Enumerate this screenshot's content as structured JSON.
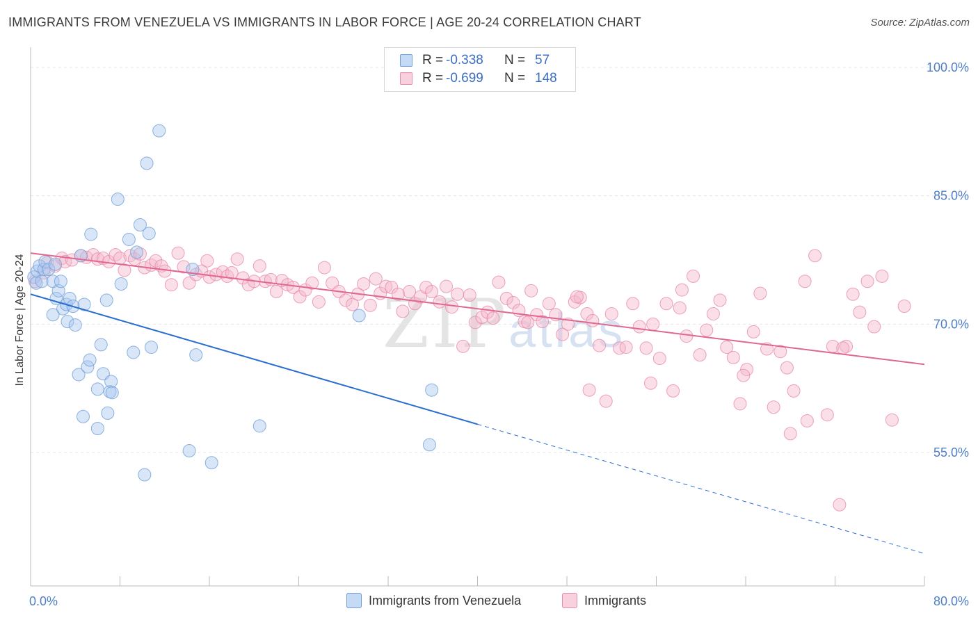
{
  "title": "IMMIGRANTS FROM VENEZUELA VS IMMIGRANTS IN LABOR FORCE | AGE 20-24 CORRELATION CHART",
  "source": "Source: ZipAtlas.com",
  "watermark": {
    "zip": "ZIP",
    "atlas": "atlas"
  },
  "legend": {
    "rows": [
      {
        "r_label": "R =",
        "r_value": "-0.338",
        "n_label": "N =",
        "n_value": "57"
      },
      {
        "r_label": "R =",
        "r_value": "-0.699",
        "n_label": "N =",
        "n_value": "148"
      }
    ]
  },
  "bottom_legend": [
    "Immigrants from Venezuela",
    "Immigrants"
  ],
  "colors": {
    "blue_fill": "#a9c8ef",
    "blue_stroke": "#6f9fd8",
    "blue_line": "#2a6fcf",
    "pink_fill": "#f5b8cb",
    "pink_stroke": "#e88aa9",
    "pink_line": "#e0678f",
    "tick_label": "#4f7fc7",
    "grid": "#e6e6e6"
  },
  "chart_data": {
    "type": "scatter",
    "title": "IMMIGRANTS FROM VENEZUELA VS IMMIGRANTS IN LABOR FORCE | AGE 20-24 CORRELATION CHART",
    "xlabel": "",
    "ylabel": "In Labor Force | Age 20-24",
    "xlim": [
      0,
      80
    ],
    "ylim": [
      40,
      100
    ],
    "x_tick_labels": [
      "0.0%",
      "80.0%"
    ],
    "y_ticks": [
      55,
      70,
      85,
      100
    ],
    "y_tick_labels": [
      "55.0%",
      "70.0%",
      "85.0%",
      "100.0%"
    ],
    "grid": true,
    "legend_position": "top-center",
    "series": [
      {
        "name": "Immigrants from Venezuela",
        "R": -0.338,
        "N": 57,
        "trend": {
          "x0": 0,
          "y0": 73.5,
          "x1": 40,
          "y1": 58.3,
          "dashed_to_x": 80,
          "dashed_to_y": 43.2
        },
        "points": [
          [
            0.3,
            75.5
          ],
          [
            0.5,
            74.8
          ],
          [
            0.6,
            76.2
          ],
          [
            0.8,
            76.8
          ],
          [
            1.0,
            75.0
          ],
          [
            1.2,
            76.4
          ],
          [
            1.3,
            77.3
          ],
          [
            1.6,
            76.4
          ],
          [
            2.0,
            75.0
          ],
          [
            2.3,
            73.0
          ],
          [
            2.2,
            77.0
          ],
          [
            2.5,
            73.9
          ],
          [
            2.7,
            75.0
          ],
          [
            2.9,
            71.8
          ],
          [
            3.2,
            72.3
          ],
          [
            3.5,
            73.0
          ],
          [
            3.8,
            72.1
          ],
          [
            3.3,
            70.3
          ],
          [
            2.0,
            71.1
          ],
          [
            4.0,
            69.9
          ],
          [
            4.3,
            64.1
          ],
          [
            4.5,
            78.0
          ],
          [
            4.8,
            72.3
          ],
          [
            5.1,
            65.0
          ],
          [
            5.3,
            65.8
          ],
          [
            5.4,
            80.5
          ],
          [
            6.0,
            62.4
          ],
          [
            6.3,
            67.6
          ],
          [
            6.0,
            57.8
          ],
          [
            4.7,
            59.2
          ],
          [
            6.5,
            64.2
          ],
          [
            6.8,
            72.8
          ],
          [
            6.9,
            59.6
          ],
          [
            7.1,
            62.1
          ],
          [
            7.2,
            63.3
          ],
          [
            7.3,
            62.0
          ],
          [
            7.8,
            84.6
          ],
          [
            8.1,
            74.7
          ],
          [
            8.8,
            79.9
          ],
          [
            9.2,
            66.7
          ],
          [
            9.5,
            78.4
          ],
          [
            9.8,
            81.6
          ],
          [
            10.2,
            52.4
          ],
          [
            10.4,
            88.8
          ],
          [
            10.6,
            80.6
          ],
          [
            10.8,
            67.3
          ],
          [
            11.5,
            92.6
          ],
          [
            14.2,
            55.2
          ],
          [
            14.5,
            76.4
          ],
          [
            14.8,
            66.4
          ],
          [
            16.2,
            53.8
          ],
          [
            20.5,
            58.1
          ],
          [
            29.4,
            71.0
          ],
          [
            35.7,
            55.9
          ],
          [
            35.9,
            62.3
          ]
        ]
      },
      {
        "name": "Immigrants",
        "R": -0.699,
        "N": 148,
        "trend": {
          "x0": 0,
          "y0": 78.3,
          "x1": 80,
          "y1": 65.3
        },
        "points": [
          [
            0.4,
            75.0
          ],
          [
            1.2,
            76.0
          ],
          [
            1.5,
            77.2
          ],
          [
            2.2,
            76.8
          ],
          [
            2.8,
            77.7
          ],
          [
            3.1,
            77.3
          ],
          [
            3.7,
            77.5
          ],
          [
            4.5,
            78.0
          ],
          [
            5.0,
            77.8
          ],
          [
            5.6,
            78.1
          ],
          [
            6.0,
            77.6
          ],
          [
            6.5,
            77.7
          ],
          [
            7.0,
            77.3
          ],
          [
            7.6,
            78.1
          ],
          [
            8.0,
            77.7
          ],
          [
            8.4,
            76.3
          ],
          [
            8.9,
            78.0
          ],
          [
            9.3,
            77.6
          ],
          [
            9.8,
            78.2
          ],
          [
            10.2,
            76.6
          ],
          [
            10.8,
            76.9
          ],
          [
            11.2,
            77.4
          ],
          [
            11.7,
            76.8
          ],
          [
            12.0,
            76.2
          ],
          [
            12.6,
            74.6
          ],
          [
            13.2,
            78.3
          ],
          [
            13.7,
            76.7
          ],
          [
            14.2,
            74.8
          ],
          [
            14.8,
            75.8
          ],
          [
            15.3,
            76.2
          ],
          [
            15.8,
            77.4
          ],
          [
            16.0,
            75.5
          ],
          [
            16.6,
            75.8
          ],
          [
            17.2,
            76.1
          ],
          [
            17.6,
            75.6
          ],
          [
            18.0,
            76.0
          ],
          [
            18.5,
            77.6
          ],
          [
            19.0,
            75.4
          ],
          [
            19.5,
            74.6
          ],
          [
            20.0,
            75.0
          ],
          [
            20.5,
            76.8
          ],
          [
            21.0,
            75.0
          ],
          [
            21.5,
            75.2
          ],
          [
            22.0,
            73.8
          ],
          [
            22.5,
            75.1
          ],
          [
            23.0,
            74.6
          ],
          [
            23.5,
            74.3
          ],
          [
            24.1,
            73.2
          ],
          [
            24.6,
            74.0
          ],
          [
            25.2,
            74.8
          ],
          [
            25.8,
            72.6
          ],
          [
            26.3,
            76.6
          ],
          [
            27.0,
            74.8
          ],
          [
            27.6,
            73.8
          ],
          [
            28.2,
            72.8
          ],
          [
            28.8,
            72.3
          ],
          [
            29.3,
            73.5
          ],
          [
            29.8,
            74.7
          ],
          [
            30.4,
            72.2
          ],
          [
            30.9,
            75.3
          ],
          [
            31.3,
            73.6
          ],
          [
            31.8,
            74.4
          ],
          [
            32.3,
            74.3
          ],
          [
            32.9,
            73.5
          ],
          [
            33.3,
            71.5
          ],
          [
            33.9,
            73.8
          ],
          [
            34.4,
            72.4
          ],
          [
            34.9,
            73.2
          ],
          [
            35.4,
            74.3
          ],
          [
            35.9,
            73.8
          ],
          [
            36.6,
            72.6
          ],
          [
            37.2,
            74.4
          ],
          [
            37.7,
            72.0
          ],
          [
            38.2,
            73.5
          ],
          [
            38.7,
            67.4
          ],
          [
            39.3,
            73.4
          ],
          [
            39.8,
            70.2
          ],
          [
            40.4,
            70.8
          ],
          [
            40.9,
            71.4
          ],
          [
            41.4,
            70.7
          ],
          [
            41.9,
            74.9
          ],
          [
            42.6,
            73.0
          ],
          [
            43.2,
            72.5
          ],
          [
            43.7,
            71.6
          ],
          [
            44.2,
            70.3
          ],
          [
            44.8,
            73.9
          ],
          [
            45.3,
            71.1
          ],
          [
            45.8,
            70.3
          ],
          [
            46.4,
            72.4
          ],
          [
            47.0,
            71.1
          ],
          [
            47.6,
            68.8
          ],
          [
            48.1,
            70.0
          ],
          [
            48.7,
            72.6
          ],
          [
            49.2,
            73.1
          ],
          [
            49.8,
            71.2
          ],
          [
            50.3,
            70.4
          ],
          [
            50.9,
            67.5
          ],
          [
            51.5,
            61.0
          ],
          [
            52.0,
            71.2
          ],
          [
            52.7,
            67.2
          ],
          [
            53.3,
            67.3
          ],
          [
            53.9,
            72.4
          ],
          [
            54.5,
            69.7
          ],
          [
            55.1,
            67.2
          ],
          [
            55.7,
            70.0
          ],
          [
            56.3,
            66.0
          ],
          [
            56.9,
            72.4
          ],
          [
            57.5,
            62.2
          ],
          [
            58.1,
            71.9
          ],
          [
            58.7,
            68.6
          ],
          [
            59.3,
            75.6
          ],
          [
            59.9,
            66.4
          ],
          [
            60.5,
            69.3
          ],
          [
            61.1,
            71.2
          ],
          [
            61.7,
            72.8
          ],
          [
            62.3,
            67.3
          ],
          [
            62.9,
            66.1
          ],
          [
            63.5,
            60.7
          ],
          [
            64.1,
            64.7
          ],
          [
            64.7,
            69.1
          ],
          [
            65.3,
            73.6
          ],
          [
            65.9,
            67.1
          ],
          [
            66.5,
            60.3
          ],
          [
            67.1,
            66.8
          ],
          [
            67.7,
            64.9
          ],
          [
            68.3,
            62.2
          ],
          [
            69.3,
            75.0
          ],
          [
            69.5,
            58.7
          ],
          [
            70.2,
            78.0
          ],
          [
            71.3,
            59.4
          ],
          [
            71.8,
            67.4
          ],
          [
            72.4,
            48.9
          ],
          [
            73.0,
            67.4
          ],
          [
            73.6,
            73.5
          ],
          [
            74.2,
            71.4
          ],
          [
            74.9,
            75.0
          ],
          [
            75.5,
            69.7
          ],
          [
            76.2,
            75.6
          ],
          [
            77.1,
            58.8
          ],
          [
            78.2,
            72.1
          ],
          [
            58.3,
            74.0
          ],
          [
            63.8,
            64.0
          ],
          [
            68.0,
            57.2
          ],
          [
            72.7,
            67.2
          ],
          [
            50.0,
            62.3
          ],
          [
            55.5,
            63.1
          ],
          [
            44.5,
            70.2
          ],
          [
            48.9,
            73.2
          ]
        ]
      }
    ]
  }
}
